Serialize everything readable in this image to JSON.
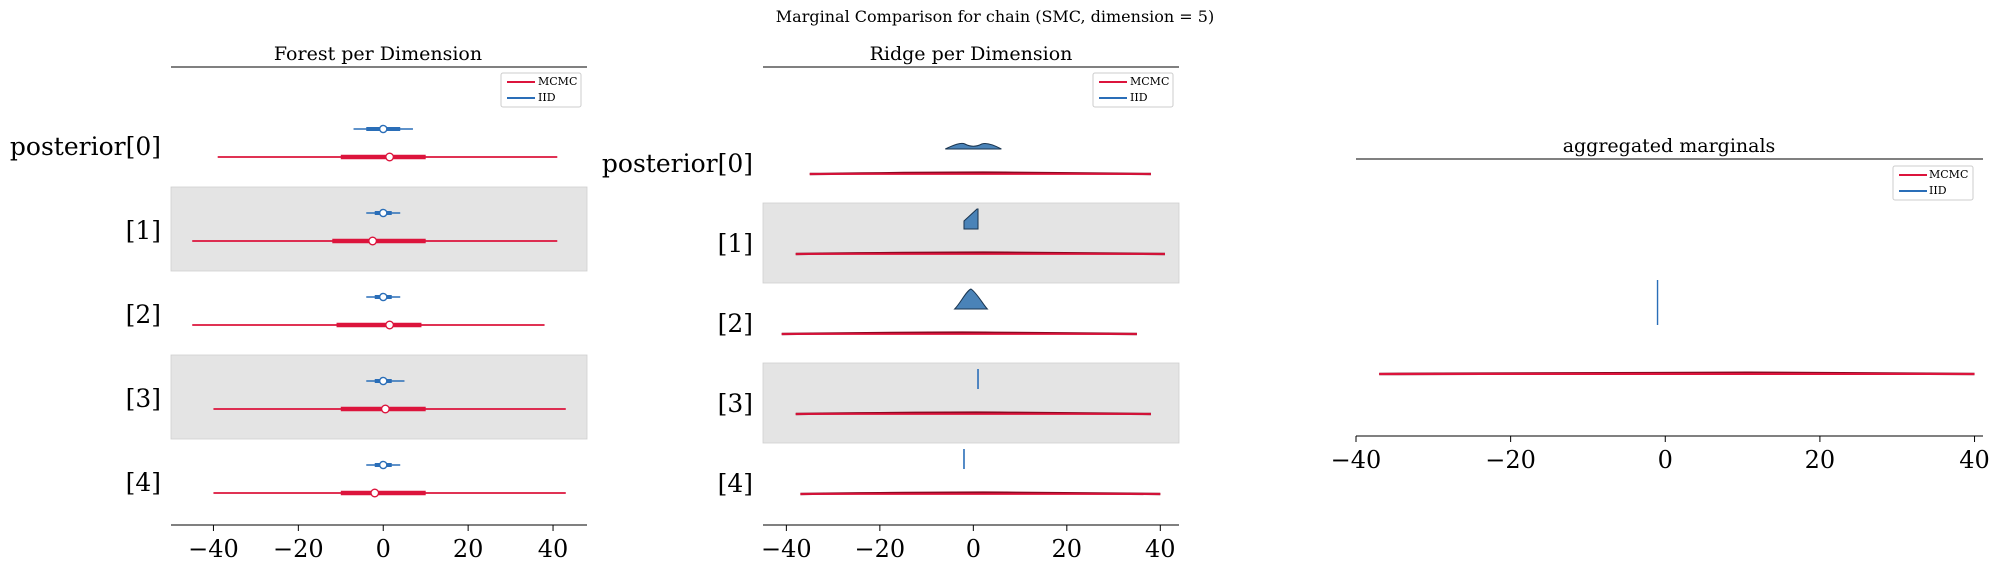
{
  "figure": {
    "suptitle": "Marginal Comparison for chain (SMC, dimension = 5)"
  },
  "colors": {
    "mcmc": "#dc143c",
    "iid": "#2a6eb8",
    "iid_fill": "#4a83b8",
    "band": "#e4e4e4",
    "mcmc_dark": "#8b0a22"
  },
  "chart_data": [
    {
      "type": "forest",
      "title": "Forest per Dimension",
      "labels": [
        "posterior[0]",
        "[1]",
        "[2]",
        "[3]",
        "[4]"
      ],
      "xlim": [
        -50,
        48
      ],
      "xticks": [
        -40,
        -20,
        0,
        20,
        40
      ],
      "xtick_labels": [
        "−40",
        "−20",
        "0",
        "20",
        "40"
      ],
      "legend": {
        "position": "top-right",
        "entries": [
          "MCMC",
          "IID"
        ]
      },
      "series": [
        {
          "name": "MCMC",
          "intervals": [
            {
              "hdi94": [
                -39,
                41
              ],
              "hdi50": [
                -10,
                10
              ],
              "median": 1.5
            },
            {
              "hdi94": [
                -45,
                41
              ],
              "hdi50": [
                -12,
                10
              ],
              "median": -2.5
            },
            {
              "hdi94": [
                -45,
                38
              ],
              "hdi50": [
                -11,
                9
              ],
              "median": 1.5
            },
            {
              "hdi94": [
                -40,
                43
              ],
              "hdi50": [
                -10,
                10
              ],
              "median": 0.5
            },
            {
              "hdi94": [
                -40,
                43
              ],
              "hdi50": [
                -10,
                10
              ],
              "median": -2
            }
          ]
        },
        {
          "name": "IID",
          "intervals": [
            {
              "hdi94": [
                -7,
                7
              ],
              "hdi50": [
                -4,
                4
              ],
              "median": 0
            },
            {
              "hdi94": [
                -4,
                4
              ],
              "hdi50": [
                -2,
                2
              ],
              "median": 0
            },
            {
              "hdi94": [
                -4,
                4
              ],
              "hdi50": [
                -2,
                2
              ],
              "median": 0
            },
            {
              "hdi94": [
                -4,
                5
              ],
              "hdi50": [
                -2,
                2
              ],
              "median": 0
            },
            {
              "hdi94": [
                -4,
                4
              ],
              "hdi50": [
                -2,
                2
              ],
              "median": 0
            }
          ]
        }
      ]
    },
    {
      "type": "ridge",
      "title": "Ridge per Dimension",
      "labels": [
        "posterior[0]",
        "[1]",
        "[2]",
        "[3]",
        "[4]"
      ],
      "xlim": [
        -45,
        44
      ],
      "xticks": [
        -40,
        -20,
        0,
        20,
        40
      ],
      "xtick_labels": [
        "−40",
        "−20",
        "0",
        "20",
        "40"
      ],
      "legend": {
        "position": "top-right",
        "entries": [
          "MCMC",
          "IID"
        ]
      },
      "series": [
        {
          "name": "MCMC",
          "ranges": [
            [
              -35,
              38
            ],
            [
              -38,
              41
            ],
            [
              -41,
              35
            ],
            [
              -38,
              38
            ],
            [
              -37,
              40
            ]
          ]
        },
        {
          "name": "IID",
          "ranges": [
            [
              -6,
              6
            ],
            [
              -2,
              1
            ],
            [
              -4,
              3
            ],
            [
              1,
              1
            ],
            [
              -2,
              -2
            ]
          ]
        }
      ]
    },
    {
      "type": "density",
      "title": "aggregated marginals",
      "xlim": [
        -40,
        42
      ],
      "xticks": [
        -40,
        -20,
        0,
        20,
        40
      ],
      "xtick_labels": [
        "−40",
        "−20",
        "0",
        "20",
        "40"
      ],
      "legend": {
        "position": "top-right",
        "entries": [
          "MCMC",
          "IID"
        ]
      },
      "series": [
        {
          "name": "MCMC",
          "range": [
            -37,
            40
          ]
        },
        {
          "name": "IID",
          "value": -1
        }
      ]
    }
  ]
}
